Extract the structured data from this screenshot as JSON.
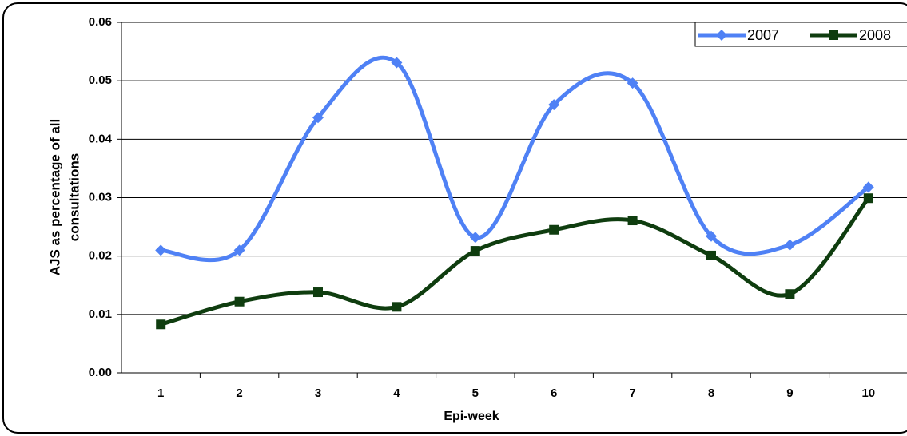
{
  "chart_data": {
    "type": "line",
    "ylabel": [
      "AJS as percentage of all",
      "consultations"
    ],
    "xlabel": "Epi-week",
    "categories": [
      "1",
      "2",
      "3",
      "4",
      "5",
      "6",
      "7",
      "8",
      "9",
      "10"
    ],
    "series": [
      {
        "name": "2007",
        "color": "#4f81f5",
        "marker": "diamond",
        "values": [
          0.021,
          0.021,
          0.0437,
          0.0531,
          0.0232,
          0.0459,
          0.0496,
          0.0234,
          0.0219,
          0.0318
        ]
      },
      {
        "name": "2008",
        "color": "#0f3d0f",
        "marker": "square",
        "values": [
          0.0083,
          0.0122,
          0.0138,
          0.0113,
          0.0209,
          0.0245,
          0.0261,
          0.0201,
          0.0135,
          0.0299
        ]
      }
    ],
    "ylim": [
      0,
      0.06
    ],
    "yticks": [
      {
        "value": 0,
        "label": "0.00"
      },
      0.01,
      0.02,
      0.03,
      0.04,
      0.05,
      0.06
    ],
    "grid": true,
    "smooth": true,
    "legend": "top-right"
  }
}
